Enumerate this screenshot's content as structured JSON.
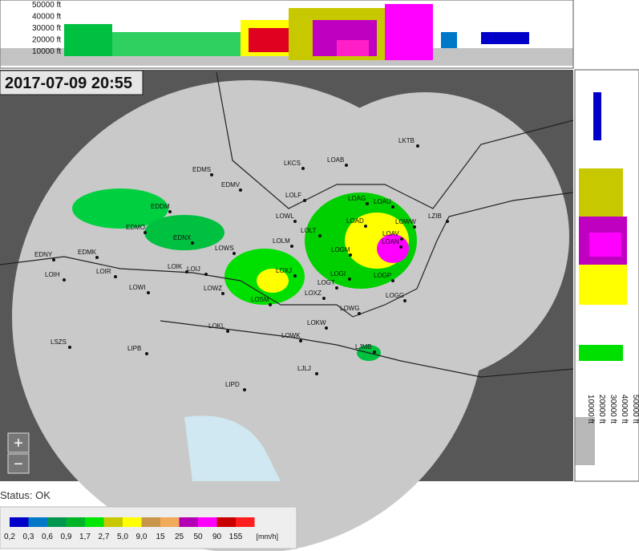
{
  "timestamp": "2017-07-09 20:55",
  "top_profile": {
    "labels": [
      "50000 ft",
      "40000 ft",
      "30000 ft",
      "20000 ft",
      "10000 ft"
    ]
  },
  "side_profile": {
    "labels": [
      "50000 ft",
      "40000 ft",
      "30000 ft",
      "20000 ft",
      "10000 ft"
    ]
  },
  "zoom": {
    "in": "+",
    "out": "−"
  },
  "stations": [
    "LKTB",
    "LKCS",
    "LOAB",
    "EDMS",
    "EDMV",
    "LOLF",
    "LOAG",
    "LOAU",
    "LOWL",
    "LOAD",
    "LOWW",
    "LZIB",
    "EDDM",
    "LOLT",
    "EDMO",
    "LOAV",
    "LOAN",
    "LOGM",
    "EDNY",
    "EDMK",
    "LOLM",
    "EDNX",
    "LOWS",
    "LOIK",
    "LOIJ",
    "LOXJ",
    "LOIH",
    "LOIR",
    "LOGI",
    "LOGP",
    "LOGT",
    "LOXZ",
    "LOWI",
    "LOWZ",
    "LOGG",
    "LOSM",
    "LOWG",
    "LOKW",
    "LOKL",
    "LOWK",
    "LSZS",
    "LIPB",
    "LJMB",
    "LJLJ",
    "LIPD"
  ],
  "status": "Status: OK",
  "legend": {
    "labels": [
      "0,2",
      "0,3",
      "0,6",
      "0,9",
      "1,7",
      "2,7",
      "5,0",
      "9,0",
      "15",
      "25",
      "50",
      "90",
      "155"
    ],
    "unit": "[mm/h]",
    "colors": [
      "#0000c8",
      "#0078c8",
      "#009650",
      "#00b428",
      "#00e600",
      "#c8c800",
      "#ffff00",
      "#c8964b",
      "#f0aa5a",
      "#b400b4",
      "#ff00ff",
      "#c80000",
      "#ff1e1e"
    ]
  }
}
